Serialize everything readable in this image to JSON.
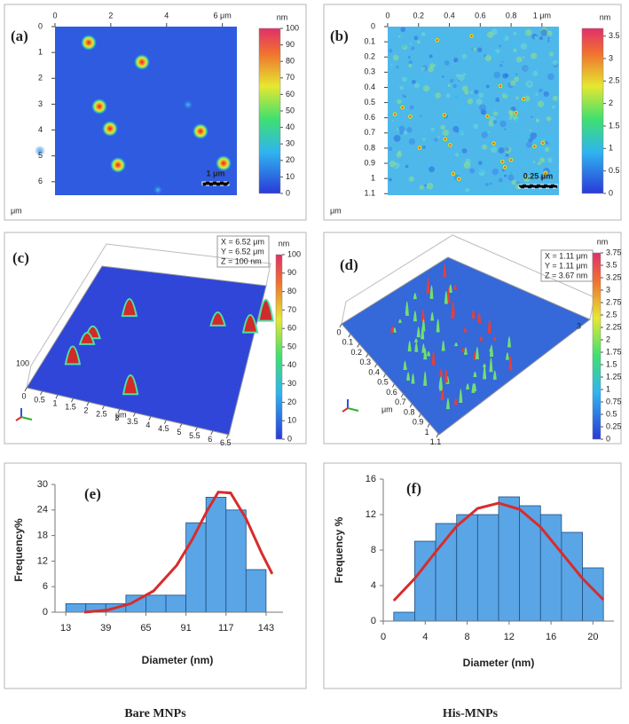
{
  "afm_images": [
    {
      "label": "(a)",
      "xlim": [
        0,
        6.52
      ],
      "ylim": [
        0,
        6.52
      ],
      "xticks": [
        0,
        2,
        4,
        {
          "value": 6,
          "label": "6 μm"
        }
      ],
      "yticks": [
        0,
        1,
        2,
        3,
        4,
        5,
        6
      ],
      "axis_unit": "μm",
      "scale_bar": "1 μm",
      "colorbar": {
        "unit": "nm",
        "lim": [
          0,
          100
        ],
        "ticks": [
          0,
          10,
          20,
          30,
          40,
          50,
          60,
          70,
          80,
          90,
          100
        ]
      }
    },
    {
      "label": "(b)",
      "xlim": [
        0,
        1.11
      ],
      "ylim": [
        0,
        1.11
      ],
      "xticks": [
        0,
        0.2,
        0.4,
        0.6,
        0.8,
        {
          "value": 1,
          "label": "1 μm"
        }
      ],
      "yticks": [
        0,
        0.1,
        0.2,
        0.3,
        0.4,
        0.5,
        0.6,
        0.7,
        0.8,
        0.9,
        1,
        1.1
      ],
      "axis_unit": "μm",
      "scale_bar": "0.25 μm",
      "colorbar": {
        "unit": "nm",
        "lim": [
          0,
          3.67
        ],
        "ticks": [
          0,
          0.5,
          1,
          1.5,
          2,
          2.5,
          3,
          3.5
        ]
      }
    }
  ],
  "views_3d": [
    {
      "label": "(c)",
      "info": [
        "X = 6.52 μm",
        "Y = 6.52 μm",
        "Z = 100 nm"
      ],
      "axis_unit": "μm",
      "z_label": "100",
      "edge_lim": [
        0,
        6.52
      ],
      "edge_ticks": [
        0,
        0.5,
        1,
        1.5,
        2,
        2.5,
        3,
        3.5,
        4,
        4.5,
        5,
        5.5,
        6,
        6.5
      ],
      "colorbar": {
        "unit": "nm",
        "lim": [
          0,
          100
        ],
        "ticks": [
          0,
          10,
          20,
          30,
          40,
          50,
          60,
          70,
          80,
          90,
          100
        ]
      }
    },
    {
      "label": "(d)",
      "info": [
        "X = 1.11 μm",
        "Y = 1.11 μm",
        "Z = 3.67 nm"
      ],
      "axis_unit": "μm",
      "z_label": "3",
      "edge_lim": [
        0,
        1.11
      ],
      "edge_ticks": [
        0,
        0.1,
        0.2,
        0.3,
        0.4,
        0.5,
        0.6,
        0.7,
        0.8,
        0.9,
        1,
        1.1
      ],
      "colorbar": {
        "unit": "nm",
        "lim": [
          0,
          3.75
        ],
        "ticks": [
          0,
          0.25,
          0.5,
          0.75,
          1,
          1.25,
          1.5,
          1.75,
          2,
          2.25,
          2.5,
          2.75,
          3,
          3.25,
          3.5,
          3.75
        ]
      }
    }
  ],
  "chart_data": [
    {
      "type": "histogram",
      "label": "(e)",
      "xlabel": "Diameter (nm)",
      "ylabel": "Frequency%",
      "bins": [
        13,
        26,
        39,
        52,
        65,
        78,
        91,
        104,
        117,
        130,
        143
      ],
      "values": [
        2,
        2,
        2,
        4,
        4,
        4,
        21,
        27,
        24,
        10
      ],
      "color": "#5aa5e6",
      "xlim": [
        6,
        154
      ],
      "ylim": [
        0,
        30
      ],
      "xticks": [
        13,
        39,
        65,
        91,
        117,
        143
      ],
      "yticks": [
        0,
        6,
        12,
        18,
        24,
        30
      ],
      "fit": {
        "color": "#d82c2c",
        "x": [
          25,
          40,
          55,
          70,
          85,
          95,
          105,
          112,
          120,
          130,
          140,
          147
        ],
        "values": [
          0,
          0.5,
          2,
          5,
          11,
          17,
          24,
          28.2,
          28,
          22,
          14,
          9
        ]
      }
    },
    {
      "type": "histogram",
      "label": "(f)",
      "xlabel": "Diameter (nm)",
      "ylabel": "Frequency %",
      "bins": [
        1,
        3,
        5,
        7,
        9,
        11,
        13,
        15,
        17,
        19,
        21
      ],
      "values": [
        1,
        9,
        11,
        12,
        12,
        14,
        13,
        12,
        10,
        6
      ],
      "color": "#5aa5e6",
      "xlim": [
        0,
        22
      ],
      "ylim": [
        0,
        16
      ],
      "xticks": [
        0,
        4,
        8,
        12,
        16,
        20
      ],
      "yticks": [
        0,
        4,
        8,
        12,
        16
      ],
      "fit": {
        "color": "#d82c2c",
        "x": [
          1,
          3,
          5,
          7,
          9,
          11,
          13,
          15,
          17,
          19,
          21
        ],
        "values": [
          2.3,
          4.8,
          7.8,
          10.7,
          12.7,
          13.3,
          12.6,
          10.6,
          7.7,
          4.8,
          2.4
        ]
      }
    }
  ],
  "captions": [
    "Bare MNPs",
    "His-MNPs"
  ]
}
